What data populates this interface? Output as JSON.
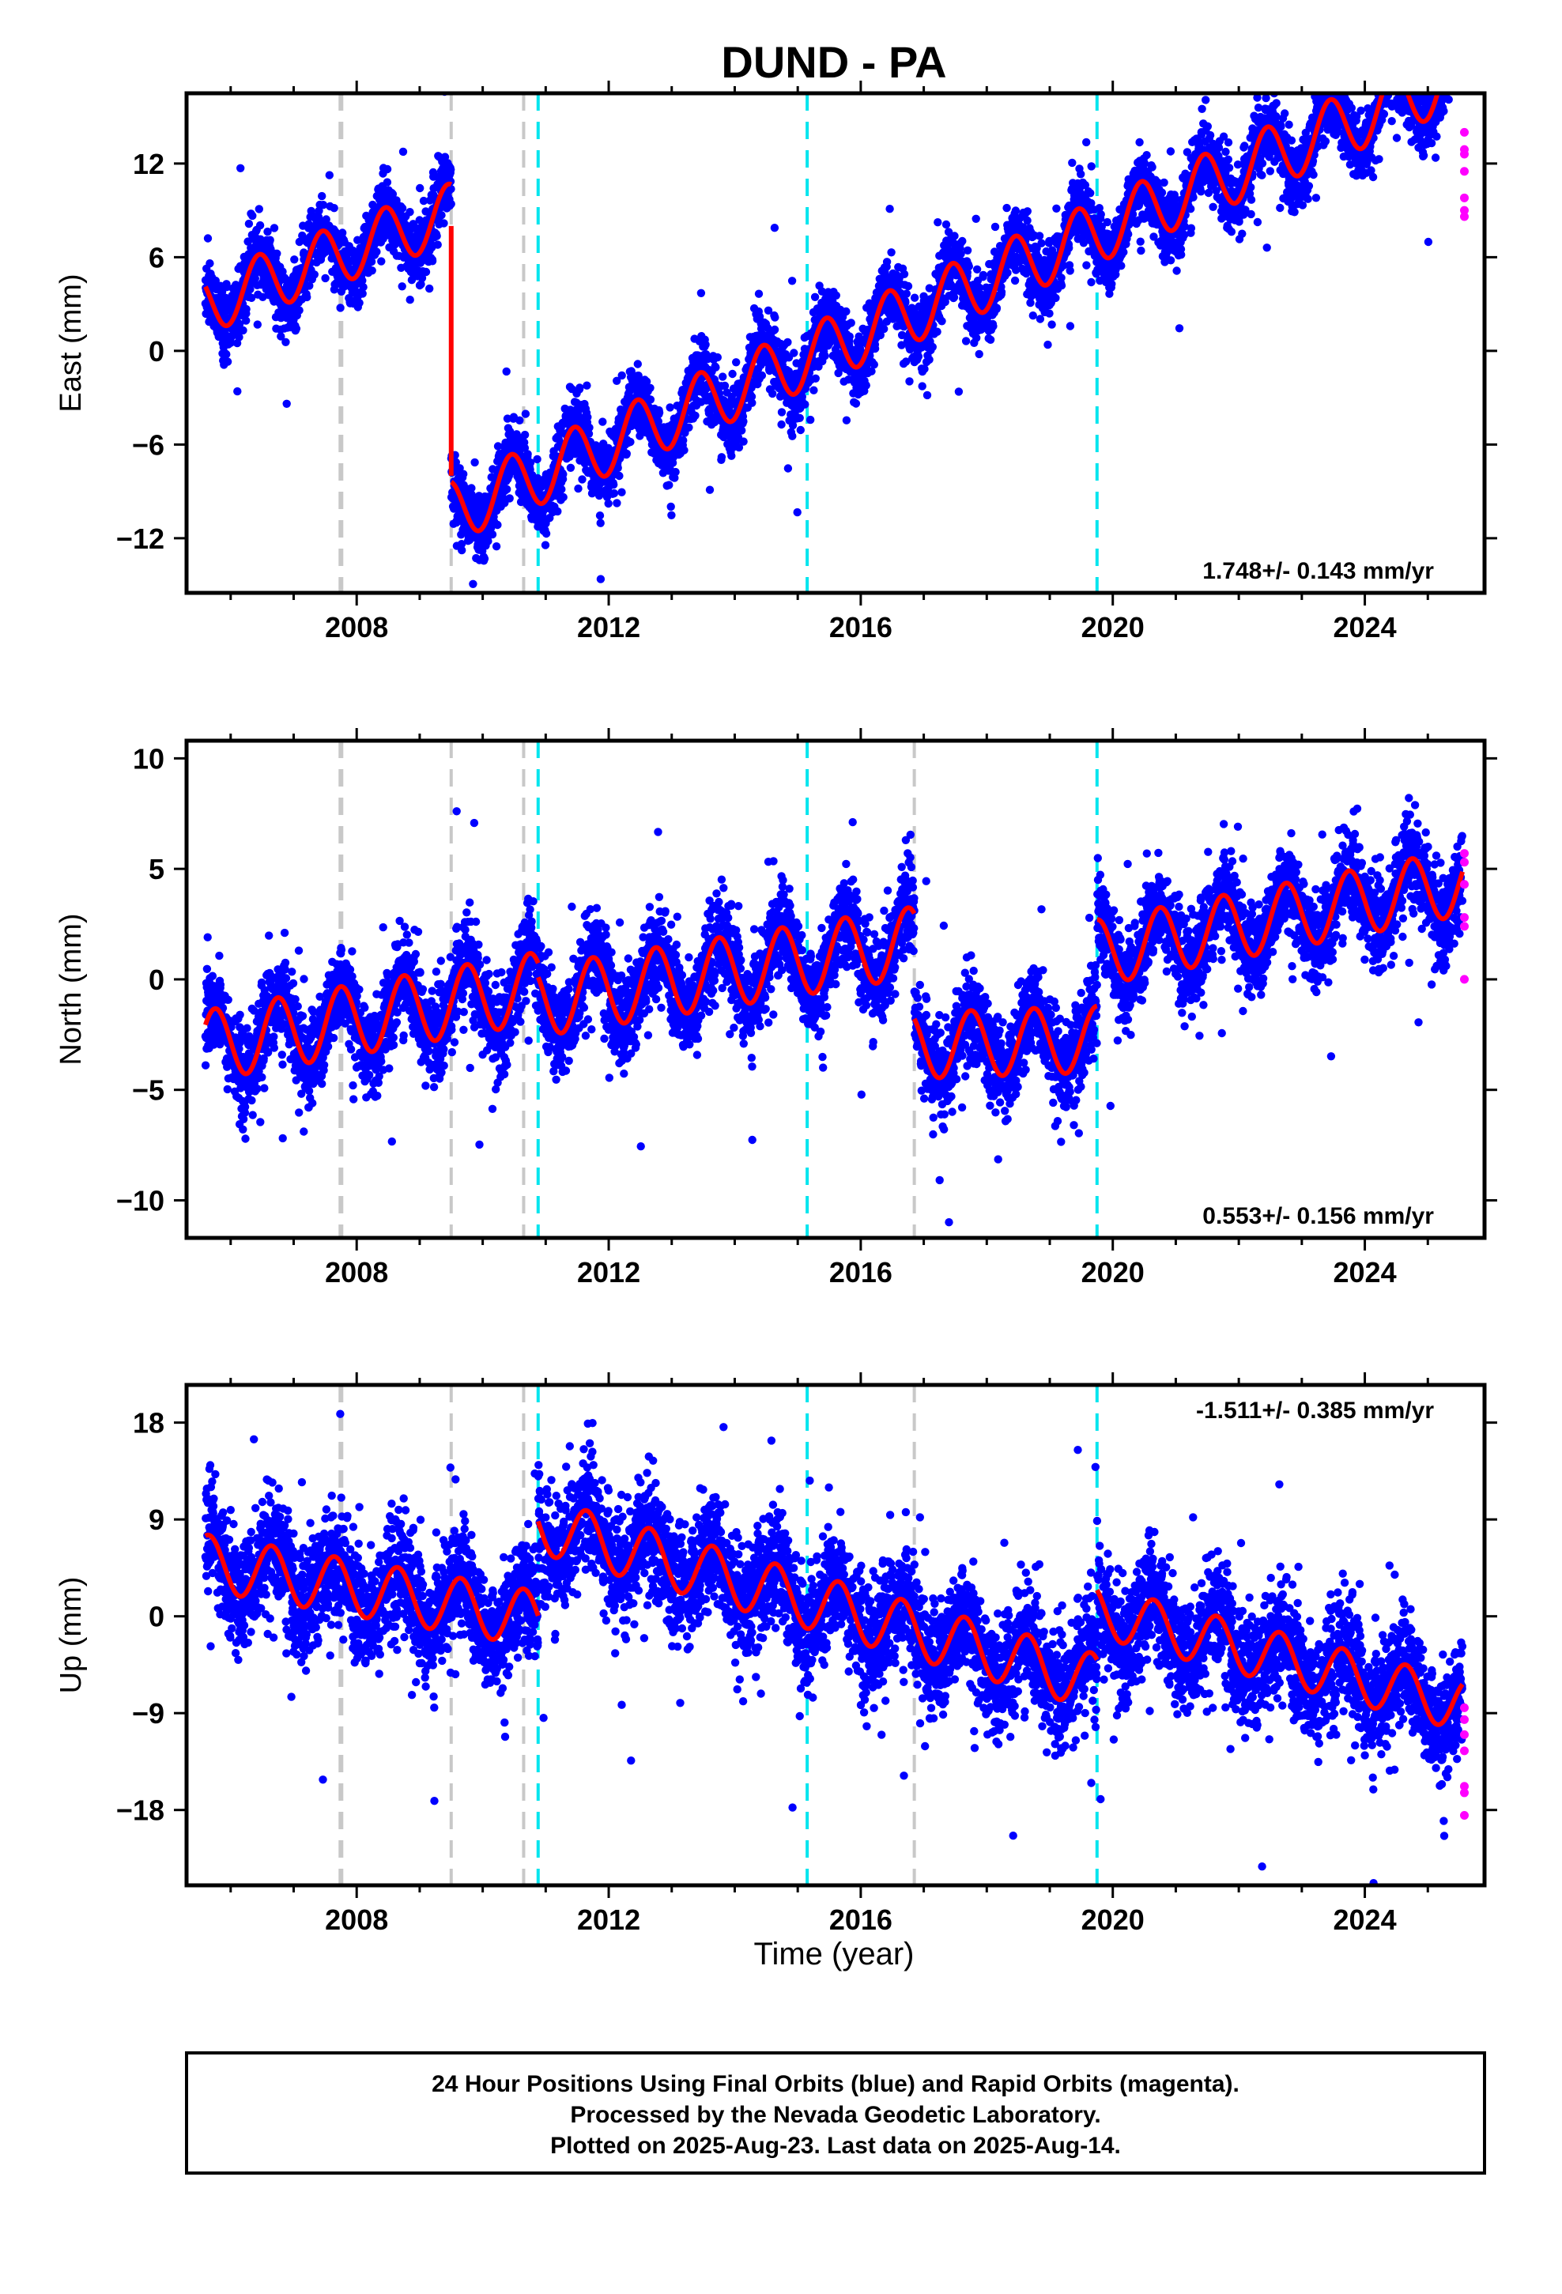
{
  "title": "DUND - PA",
  "xlabel": "Time (year)",
  "footer": {
    "line1": "24 Hour Positions Using Final Orbits (blue) and Rapid Orbits (magenta).",
    "line2": "Processed by the Nevada Geodetic Laboratory.",
    "line3": "Plotted on 2025-Aug-23. Last data on 2025-Aug-14."
  },
  "colors": {
    "final": "#0000ff",
    "rapid": "#ff00ff",
    "model": "#ff0000",
    "equipment_change": "#c8c8c8",
    "earthquake": "#00e5ee"
  },
  "chart_data": [
    {
      "type": "scatter",
      "component": "east",
      "ylabel": "East (mm)",
      "xlim": [
        2005.3,
        2025.9
      ],
      "ylim": [
        -15.5,
        16.5
      ],
      "xticks": [
        2008,
        2012,
        2016,
        2020,
        2024
      ],
      "yticks": [
        -12,
        -6,
        0,
        6,
        12
      ],
      "rate_label": "1.748+/- 0.143 mm/yr",
      "rate_position": "bottom-right",
      "breaks": {
        "gray": [
          2007.75,
          2009.5,
          2010.65
        ],
        "cyan": [
          2010.88,
          2015.15,
          2019.75
        ]
      },
      "model": {
        "start": 2005.6,
        "end": 2025.55,
        "segments": [
          {
            "from": 2005.6,
            "to": 2009.5,
            "offset": 3.0,
            "rate": 1.5,
            "amp": 1.9,
            "phase": 1.2
          },
          {
            "from": 2009.5,
            "to": 2025.55,
            "offset": -10.3,
            "rate": 1.748,
            "amp": 2.0,
            "phase": 1.2
          }
        ],
        "offset_curve": [
          [
            2009.5,
            8.0
          ],
          [
            2009.5,
            -8.0
          ],
          [
            2010.4,
            -10.5
          ],
          [
            2010.88,
            -8.2
          ],
          [
            2011.4,
            -10.5
          ]
        ]
      },
      "scatter_sigma": 1.4,
      "rapid_points": [
        [
          2025.58,
          9.0
        ],
        [
          2025.58,
          9.8
        ],
        [
          2025.58,
          11.5
        ],
        [
          2025.58,
          12.6
        ],
        [
          2025.58,
          12.9
        ],
        [
          2025.58,
          14.0
        ],
        [
          2025.58,
          8.6
        ]
      ]
    },
    {
      "type": "scatter",
      "component": "north",
      "ylabel": "North (mm)",
      "xlim": [
        2005.3,
        2025.9
      ],
      "ylim": [
        -11.7,
        10.8
      ],
      "xticks": [
        2008,
        2012,
        2016,
        2020,
        2024
      ],
      "yticks": [
        -10,
        -5,
        0,
        5,
        10
      ],
      "rate_label": "0.553+/- 0.156 mm/yr",
      "rate_position": "bottom-right",
      "breaks": {
        "gray": [
          2007.75,
          2009.5,
          2010.65,
          2016.85
        ],
        "cyan": [
          2010.88,
          2015.15,
          2019.75
        ]
      },
      "model": {
        "start": 2005.6,
        "end": 2025.55,
        "segments": [
          {
            "from": 2005.6,
            "to": 2010.88,
            "offset": -3.0,
            "rate": 0.5,
            "amp": 1.6,
            "phase": 0.5
          },
          {
            "from": 2010.88,
            "to": 2016.85,
            "offset": -1.0,
            "rate": 0.45,
            "amp": 1.6,
            "phase": 0.5
          },
          {
            "from": 2016.85,
            "to": 2019.75,
            "offset": -3.0,
            "rate": 0.1,
            "amp": 1.5,
            "phase": 0.5
          },
          {
            "from": 2019.75,
            "to": 2025.55,
            "offset": 1.2,
            "rate": 0.553,
            "amp": 1.5,
            "phase": 0.5
          }
        ]
      },
      "scatter_sigma": 1.3,
      "rapid_points": [
        [
          2025.58,
          0.0
        ],
        [
          2025.58,
          2.4
        ],
        [
          2025.58,
          2.8
        ],
        [
          2025.58,
          4.3
        ],
        [
          2025.58,
          5.3
        ],
        [
          2025.58,
          5.7
        ]
      ]
    },
    {
      "type": "scatter",
      "component": "up",
      "ylabel": "Up (mm)",
      "xlim": [
        2005.3,
        2025.9
      ],
      "ylim": [
        -25.0,
        21.5
      ],
      "xticks": [
        2008,
        2012,
        2016,
        2020,
        2024
      ],
      "yticks": [
        -18,
        -9,
        0,
        9,
        18
      ],
      "rate_label": "-1.511+/- 0.385 mm/yr",
      "rate_position": "top-right",
      "breaks": {
        "gray": [
          2007.75,
          2009.5,
          2010.65,
          2016.85
        ],
        "cyan": [
          2010.88,
          2015.15,
          2019.75
        ]
      },
      "model": {
        "start": 2005.6,
        "end": 2025.55,
        "segments": [
          {
            "from": 2005.6,
            "to": 2010.88,
            "offset": 5.0,
            "rate": -1.0,
            "amp": 2.6,
            "phase": 0.4
          },
          {
            "from": 2010.88,
            "to": 2019.75,
            "offset": 8.5,
            "rate": -1.65,
            "amp": 2.6,
            "phase": 0.4
          },
          {
            "from": 2019.75,
            "to": 2025.55,
            "offset": 0.5,
            "rate": -1.511,
            "amp": 2.4,
            "phase": 0.4
          }
        ]
      },
      "scatter_sigma": 3.4,
      "rapid_points": [
        [
          2025.58,
          -8.5
        ],
        [
          2025.58,
          -9.6
        ],
        [
          2025.58,
          -11.0
        ],
        [
          2025.58,
          -12.5
        ],
        [
          2025.58,
          -15.8
        ],
        [
          2025.58,
          -16.4
        ],
        [
          2025.58,
          -18.5
        ]
      ]
    }
  ]
}
